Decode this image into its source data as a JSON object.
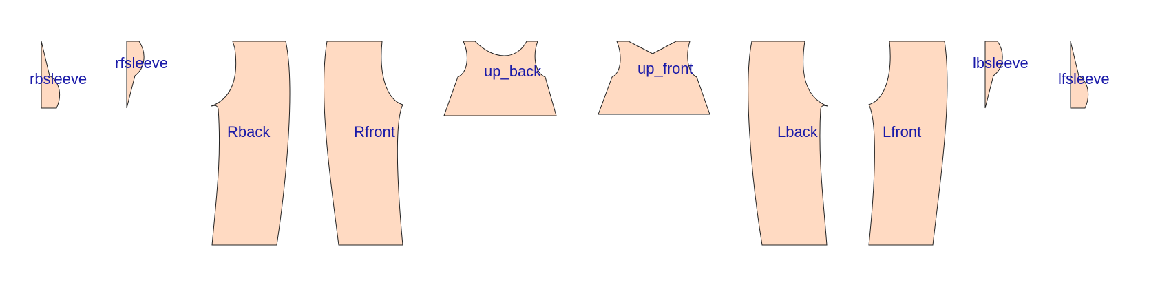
{
  "colors": {
    "fill": "#ffdac2",
    "stroke": "#222222",
    "label": "#1a1aa8",
    "background": "#ffffff"
  },
  "pieces": [
    {
      "id": "rbsleeve",
      "label": "rbsleeve"
    },
    {
      "id": "rfsleeve",
      "label": "rfsleeve"
    },
    {
      "id": "rback",
      "label": "Rback"
    },
    {
      "id": "rfront",
      "label": "Rfront"
    },
    {
      "id": "upback",
      "label": "up_back"
    },
    {
      "id": "upfront",
      "label": "up_front"
    },
    {
      "id": "lback",
      "label": "Lback"
    },
    {
      "id": "lfront",
      "label": "Lfront"
    },
    {
      "id": "lbsleeve",
      "label": "lbsleeve"
    },
    {
      "id": "lfsleeve",
      "label": "lfsleeve"
    }
  ]
}
